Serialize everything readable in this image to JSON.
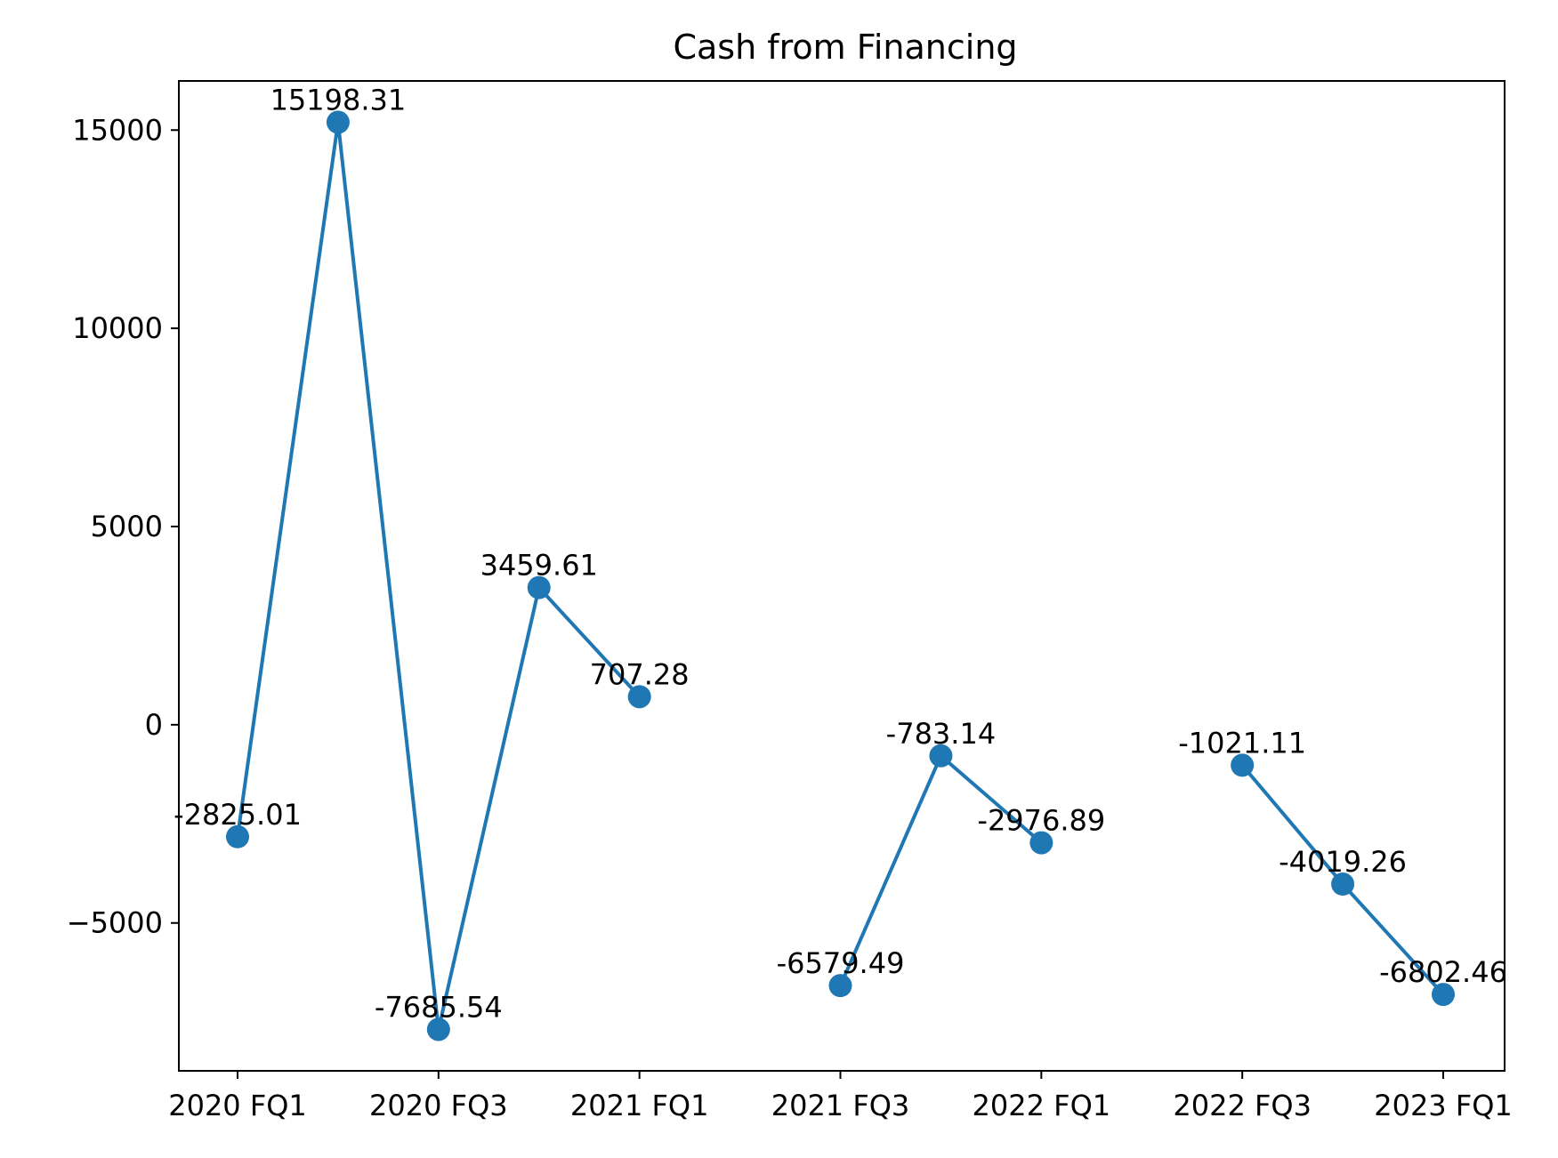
{
  "chart_data": {
    "type": "line",
    "title": "Cash from Financing",
    "xlabel": "",
    "ylabel": "",
    "x_tick_labels": [
      "2020 FQ1",
      "2020 FQ3",
      "2021 FQ1",
      "2021 FQ3",
      "2022 FQ1",
      "2022 FQ3",
      "2023 FQ1"
    ],
    "y_ticks": [
      -5000,
      0,
      5000,
      10000,
      15000
    ],
    "y_tick_labels": [
      "−5000",
      "0",
      "5000",
      "10000",
      "15000"
    ],
    "ylim": [
      -8730,
      16240
    ],
    "grid": false,
    "legend": "none",
    "color": "#1f77b4",
    "series": [
      {
        "points": [
          {
            "x": "2020 FQ1",
            "y": -2825.01,
            "label": "-2825.01"
          },
          {
            "x": "2020 FQ2",
            "y": 15198.31,
            "label": "15198.31"
          },
          {
            "x": "2020 FQ3",
            "y": -7685.54,
            "label": "-7685.54"
          },
          {
            "x": "2020 FQ4",
            "y": 3459.61,
            "label": "3459.61"
          },
          {
            "x": "2021 FQ1",
            "y": 707.28,
            "label": "707.28"
          },
          {
            "x": "2021 FQ2",
            "y": null,
            "label": null
          },
          {
            "x": "2021 FQ3",
            "y": -6579.49,
            "label": "-6579.49"
          },
          {
            "x": "2021 FQ4",
            "y": -783.14,
            "label": "-783.14"
          },
          {
            "x": "2022 FQ1",
            "y": -2976.89,
            "label": "-2976.89"
          },
          {
            "x": "2022 FQ2",
            "y": null,
            "label": null
          },
          {
            "x": "2022 FQ3",
            "y": -1021.11,
            "label": "-1021.11"
          },
          {
            "x": "2022 FQ4",
            "y": -4019.26,
            "label": "-4019.26"
          },
          {
            "x": "2023 FQ1",
            "y": -6802.46,
            "label": "-6802.46"
          }
        ]
      }
    ]
  }
}
